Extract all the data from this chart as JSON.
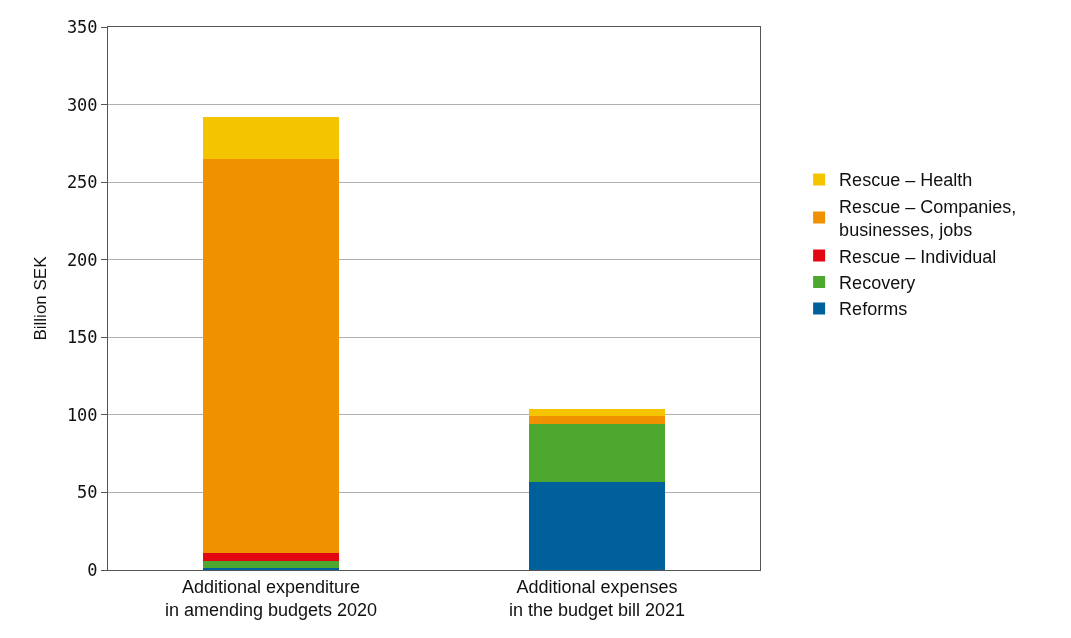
{
  "chart_data": {
    "type": "bar",
    "stacked": true,
    "ylabel": "Billion SEK",
    "categories": [
      "Additional expenditure\nin amending budgets 2020",
      "Additional expenses\nin the budget bill 2021"
    ],
    "series": [
      {
        "name": "Reforms",
        "color": "#00609c",
        "values": [
          1,
          57
        ]
      },
      {
        "name": "Recovery",
        "color": "#4ea72e",
        "values": [
          5,
          37
        ]
      },
      {
        "name": "Rescue – Individual",
        "color": "#e30613",
        "values": [
          5,
          0
        ]
      },
      {
        "name": "Rescue – Companies,\nbusinesses, jobs",
        "color": "#f09100",
        "values": [
          254,
          5
        ]
      },
      {
        "name": "Rescue – Health",
        "color": "#f5c400",
        "values": [
          27,
          5
        ]
      }
    ],
    "ylim": [
      0,
      350
    ],
    "yticks": [
      0,
      50,
      100,
      150,
      200,
      250,
      300,
      350
    ],
    "grid": "y",
    "legend": "right"
  }
}
